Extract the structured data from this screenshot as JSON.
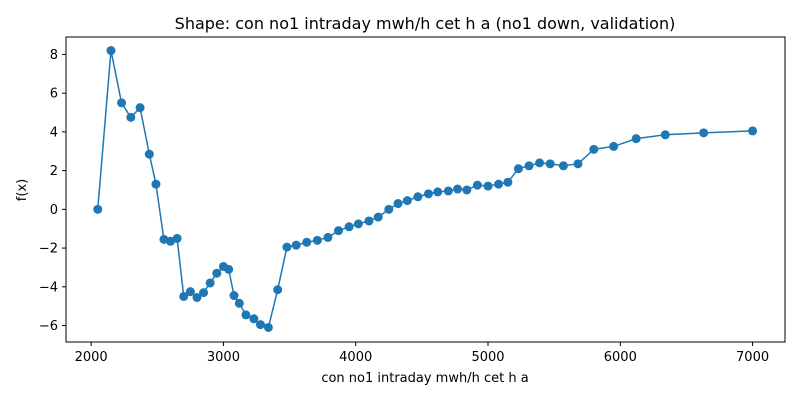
{
  "chart_data": {
    "type": "line",
    "title": "Shape: con no1 intraday mwh/h cet h a (no1 down, validation)",
    "xlabel": "con no1 intraday mwh/h cet h a",
    "ylabel": "f(x)",
    "xlim": [
      1810,
      7245
    ],
    "ylim": [
      -6.85,
      8.9
    ],
    "xticks": [
      2000,
      3000,
      4000,
      5000,
      6000,
      7000
    ],
    "yticks": [
      -6,
      -4,
      -2,
      0,
      2,
      4,
      6,
      8
    ],
    "grid": false,
    "color": "#1f77b4",
    "markers": true,
    "series": [
      {
        "x": [
          2050,
          2150,
          2230,
          2300,
          2370,
          2440,
          2490,
          2550,
          2600,
          2650,
          2700,
          2750,
          2800,
          2850,
          2900,
          2950,
          3000,
          3040,
          3080,
          3120,
          3170,
          3230,
          3280,
          3340,
          3410,
          3480,
          3550,
          3630,
          3710,
          3790,
          3870,
          3950,
          4020,
          4100,
          4170,
          4250,
          4320,
          4390,
          4470,
          4550,
          4620,
          4700,
          4770,
          4840,
          4920,
          5000,
          5080,
          5150,
          5230,
          5310,
          5390,
          5470,
          5570,
          5680,
          5800,
          5950,
          6120,
          6340,
          6630,
          7000
        ],
        "y": [
          0.0,
          8.2,
          5.5,
          4.75,
          5.25,
          2.85,
          1.3,
          -1.55,
          -1.65,
          -1.5,
          -4.5,
          -4.25,
          -4.55,
          -4.3,
          -3.8,
          -3.3,
          -2.95,
          -3.1,
          -4.45,
          -4.85,
          -5.45,
          -5.65,
          -5.95,
          -6.1,
          -4.15,
          -1.95,
          -1.85,
          -1.7,
          -1.6,
          -1.45,
          -1.1,
          -0.9,
          -0.75,
          -0.6,
          -0.4,
          0.0,
          0.3,
          0.45,
          0.65,
          0.8,
          0.9,
          0.95,
          1.05,
          1.0,
          1.25,
          1.2,
          1.3,
          1.4,
          2.1,
          2.25,
          2.4,
          2.35,
          2.25,
          2.35,
          3.1,
          3.25,
          3.65,
          3.85,
          3.95,
          4.05
        ]
      }
    ]
  }
}
